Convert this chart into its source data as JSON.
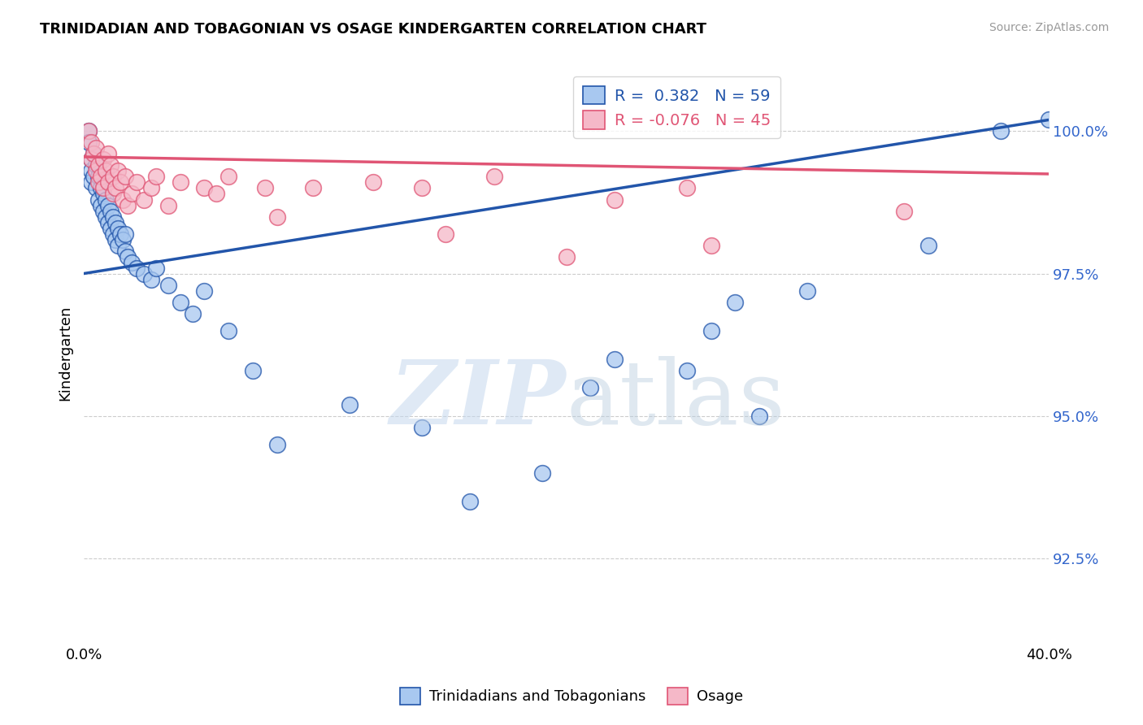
{
  "title": "TRINIDADIAN AND TOBAGONIAN VS OSAGE KINDERGARTEN CORRELATION CHART",
  "source": "Source: ZipAtlas.com",
  "ylabel": "Kindergarten",
  "ytick_values": [
    92.5,
    95.0,
    97.5,
    100.0
  ],
  "xrange": [
    0.0,
    40.0
  ],
  "yrange": [
    91.0,
    101.2
  ],
  "blue_R": 0.382,
  "blue_N": 59,
  "pink_R": -0.076,
  "pink_N": 45,
  "blue_color": "#A8C8F0",
  "pink_color": "#F5B8C8",
  "blue_line_color": "#2255AA",
  "pink_line_color": "#E05575",
  "legend_label_blue": "Trinidadians and Tobagonians",
  "legend_label_pink": "Osage",
  "blue_line_x0": 0.0,
  "blue_line_y0": 97.5,
  "blue_line_x1": 40.0,
  "blue_line_y1": 100.2,
  "pink_line_x0": 0.0,
  "pink_line_y0": 99.55,
  "pink_line_x1": 40.0,
  "pink_line_y1": 99.25,
  "blue_scatter_x": [
    0.2,
    0.2,
    0.3,
    0.3,
    0.3,
    0.4,
    0.4,
    0.5,
    0.5,
    0.6,
    0.6,
    0.7,
    0.7,
    0.8,
    0.8,
    0.8,
    0.9,
    0.9,
    1.0,
    1.0,
    1.1,
    1.1,
    1.2,
    1.2,
    1.3,
    1.3,
    1.4,
    1.4,
    1.5,
    1.6,
    1.7,
    1.7,
    1.8,
    2.0,
    2.2,
    2.5,
    2.8,
    3.0,
    3.5,
    4.0,
    4.5,
    5.0,
    6.0,
    7.0,
    8.0,
    11.0,
    14.0,
    16.0,
    19.0,
    21.0,
    22.0,
    25.0,
    26.0,
    27.0,
    28.0,
    30.0,
    35.0,
    38.0,
    40.0
  ],
  "blue_scatter_y": [
    100.0,
    99.8,
    99.5,
    99.3,
    99.1,
    99.6,
    99.2,
    99.4,
    99.0,
    99.2,
    98.8,
    99.0,
    98.7,
    98.9,
    98.6,
    99.0,
    98.5,
    98.8,
    98.4,
    98.7,
    98.3,
    98.6,
    98.2,
    98.5,
    98.4,
    98.1,
    98.3,
    98.0,
    98.2,
    98.1,
    97.9,
    98.2,
    97.8,
    97.7,
    97.6,
    97.5,
    97.4,
    97.6,
    97.3,
    97.0,
    96.8,
    97.2,
    96.5,
    95.8,
    94.5,
    95.2,
    94.8,
    93.5,
    94.0,
    95.5,
    96.0,
    95.8,
    96.5,
    97.0,
    95.0,
    97.2,
    98.0,
    100.0,
    100.2
  ],
  "pink_scatter_x": [
    0.2,
    0.3,
    0.3,
    0.4,
    0.5,
    0.5,
    0.6,
    0.6,
    0.7,
    0.8,
    0.8,
    0.9,
    1.0,
    1.0,
    1.1,
    1.2,
    1.2,
    1.3,
    1.4,
    1.5,
    1.6,
    1.7,
    1.8,
    2.0,
    2.2,
    2.5,
    2.8,
    3.0,
    3.5,
    4.0,
    5.0,
    5.5,
    6.0,
    7.5,
    8.0,
    9.5,
    12.0,
    14.0,
    15.0,
    17.0,
    20.0,
    22.0,
    25.0,
    26.0,
    34.0
  ],
  "pink_scatter_y": [
    100.0,
    99.8,
    99.5,
    99.6,
    99.3,
    99.7,
    99.4,
    99.1,
    99.2,
    99.5,
    99.0,
    99.3,
    99.6,
    99.1,
    99.4,
    99.2,
    98.9,
    99.0,
    99.3,
    99.1,
    98.8,
    99.2,
    98.7,
    98.9,
    99.1,
    98.8,
    99.0,
    99.2,
    98.7,
    99.1,
    99.0,
    98.9,
    99.2,
    99.0,
    98.5,
    99.0,
    99.1,
    99.0,
    98.2,
    99.2,
    97.8,
    98.8,
    99.0,
    98.0,
    98.6
  ]
}
